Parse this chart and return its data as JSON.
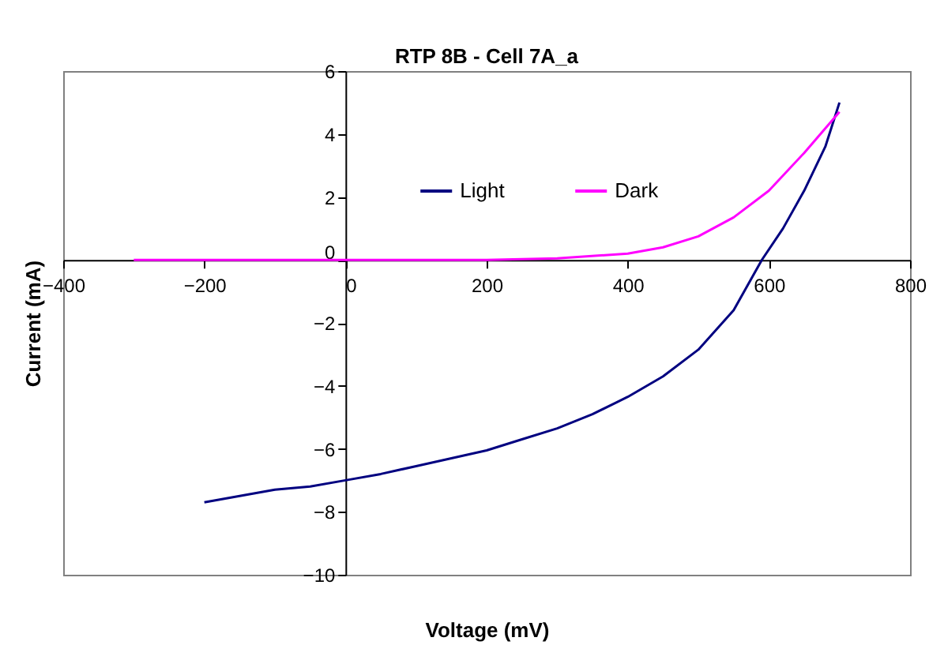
{
  "chart_data": {
    "type": "line",
    "title": "RTP 8B - Cell 7A_a",
    "xlabel": "Voltage (mV)",
    "ylabel": "Current (mA)",
    "xlim": [
      -400,
      800
    ],
    "xticks": [
      -400,
      -200,
      0,
      200,
      400,
      600,
      800
    ],
    "ylim": [
      -10,
      6
    ],
    "yticks": [
      -10,
      -8,
      -6,
      -4,
      -2,
      0,
      2,
      4,
      6
    ],
    "grid": false,
    "legend": "top",
    "marker": "none",
    "line_style": "solid",
    "series": [
      {
        "name": "Light",
        "color": "#000080",
        "x": [
          -200,
          -150,
          -100,
          -50,
          0,
          50,
          100,
          150,
          200,
          250,
          300,
          350,
          400,
          450,
          500,
          550,
          590,
          620,
          650,
          680,
          700
        ],
        "values": [
          -7.7,
          -7.5,
          -7.3,
          -7.2,
          -7.0,
          -6.8,
          -6.55,
          -6.3,
          -6.05,
          -5.7,
          -5.35,
          -4.9,
          -4.35,
          -3.7,
          -2.85,
          -1.6,
          0,
          1.0,
          2.2,
          3.6,
          5.0
        ]
      },
      {
        "name": "Dark",
        "color": "#ff00ff",
        "x": [
          -300,
          200,
          300,
          400,
          450,
          500,
          550,
          600,
          650,
          700
        ],
        "values": [
          0,
          0,
          0.05,
          0.2,
          0.4,
          0.75,
          1.35,
          2.2,
          3.4,
          4.7
        ]
      }
    ]
  }
}
